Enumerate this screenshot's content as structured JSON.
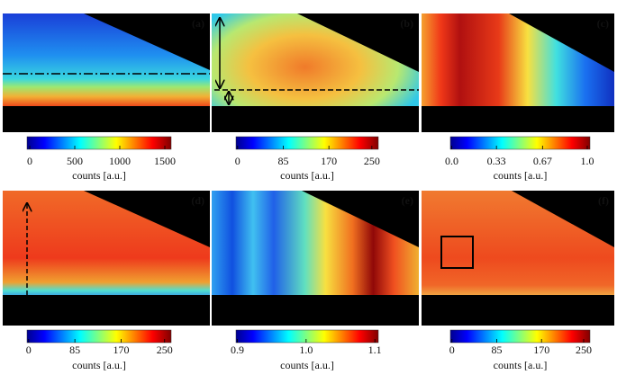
{
  "panels": [
    {
      "label": "(a)",
      "colorbar": {
        "label": "counts [a.u.]",
        "lim": [
          -30,
          1570
        ],
        "ticks": [
          0,
          500,
          1000,
          1500
        ]
      }
    },
    {
      "label": "(b)",
      "colorbar": {
        "label": "counts [a.u.]",
        "lim": [
          -3,
          262
        ],
        "ticks": [
          0,
          85,
          170,
          250
        ]
      }
    },
    {
      "label": "(c)",
      "colorbar": {
        "label": "counts [a.u.]",
        "lim": [
          -0.01,
          1.02
        ],
        "ticks": [
          {
            "value": 0,
            "label": "0.0"
          },
          0.33,
          0.67,
          {
            "value": 1,
            "label": "1.0"
          }
        ]
      }
    },
    {
      "label": "(d)",
      "colorbar": {
        "label": "counts [a.u.]",
        "lim": [
          -3,
          262
        ],
        "ticks": [
          0,
          85,
          170,
          250
        ]
      }
    },
    {
      "label": "(e)",
      "colorbar": {
        "label": "counts [a.u.]",
        "lim": [
          0.898,
          1.105
        ],
        "ticks": [
          {
            "value": 0.9,
            "label": "0.9"
          },
          {
            "value": 1,
            "label": "1.0"
          },
          {
            "value": 1.1,
            "label": "1.1"
          }
        ]
      }
    },
    {
      "label": "(f)",
      "colorbar": {
        "label": "counts [a.u.]",
        "lim": [
          -3,
          262
        ],
        "ticks": [
          0,
          85,
          170,
          250
        ]
      }
    }
  ]
}
